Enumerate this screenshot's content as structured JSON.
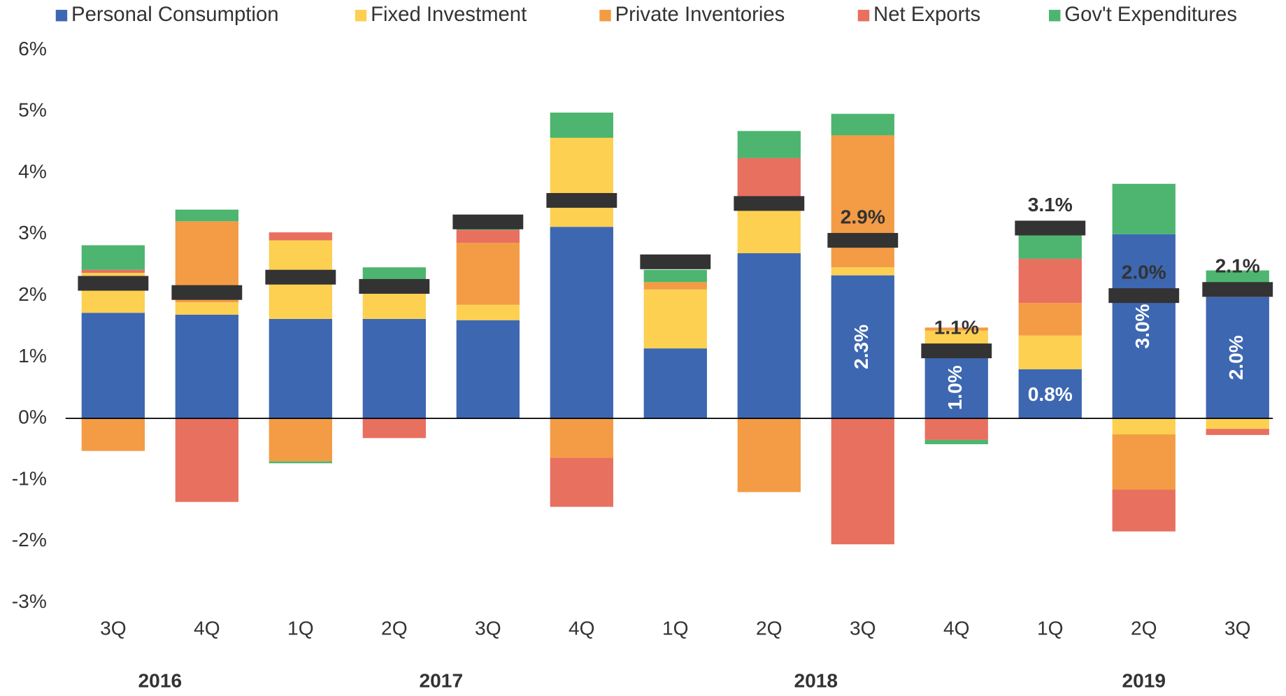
{
  "chart_data": {
    "type": "stacked-bar",
    "categories": [
      "3Q",
      "4Q",
      "1Q",
      "2Q",
      "3Q",
      "4Q",
      "1Q",
      "2Q",
      "3Q",
      "4Q",
      "1Q",
      "2Q",
      "3Q"
    ],
    "years": [
      "2016",
      "2017",
      "2018",
      "2019"
    ],
    "series": [
      {
        "name": "Personal Consumption",
        "color": "#3d67b1",
        "values": [
          1.72,
          1.69,
          1.62,
          1.62,
          1.6,
          3.12,
          1.14,
          2.69,
          2.33,
          1.0,
          0.8,
          3.0,
          1.98
        ],
        "value_labels": [
          null,
          null,
          null,
          null,
          null,
          null,
          null,
          null,
          "2.3%",
          "1.0%",
          "0.8%",
          "3.0%",
          "2.0%"
        ]
      },
      {
        "name": "Fixed Investment",
        "color": "#fdd052",
        "values": [
          0.65,
          0.2,
          1.28,
          0.64,
          0.25,
          1.45,
          0.96,
          0.7,
          0.13,
          0.43,
          0.55,
          -0.26,
          -0.17
        ]
      },
      {
        "name": "Private Inventories",
        "color": "#f39c45",
        "values": [
          -0.53,
          1.32,
          -0.7,
          0,
          1.01,
          -0.64,
          0.12,
          -1.2,
          2.15,
          0.05,
          0.53,
          -0.9,
          0.03
        ]
      },
      {
        "name": "Net Exports",
        "color": "#e8705f",
        "values": [
          0.05,
          -1.36,
          0.13,
          -0.32,
          0.21,
          -0.8,
          0,
          0.85,
          -2.05,
          -0.35,
          0.72,
          -0.68,
          -0.1
        ]
      },
      {
        "name": "Gov't Expenditures",
        "color": "#4db56f",
        "values": [
          0.4,
          0.19,
          -0.03,
          0.2,
          0.1,
          0.41,
          0.2,
          0.44,
          0.35,
          -0.07,
          0.5,
          0.82,
          0.4
        ]
      }
    ],
    "totals": {
      "color": "#333333",
      "values": [
        2.2,
        2.05,
        2.3,
        2.15,
        3.2,
        3.55,
        2.55,
        3.5,
        2.9,
        1.1,
        3.1,
        2.0,
        2.1
      ],
      "value_labels": [
        null,
        null,
        null,
        null,
        null,
        null,
        null,
        null,
        "2.9%",
        "1.1%",
        "3.1%",
        "2.0%",
        "2.1%"
      ]
    },
    "ylim": [
      -3,
      6
    ],
    "yticks": [
      {
        "value": -3,
        "label": "-3%"
      },
      {
        "value": -2,
        "label": "-2%"
      },
      {
        "value": -1,
        "label": "-1%"
      },
      {
        "value": 0,
        "label": "0%"
      },
      {
        "value": 1,
        "label": "1%"
      },
      {
        "value": 2,
        "label": "2%"
      },
      {
        "value": 3,
        "label": "3%"
      },
      {
        "value": 4,
        "label": "4%"
      },
      {
        "value": 5,
        "label": "5%"
      },
      {
        "value": 6,
        "label": "6%"
      }
    ],
    "grid": false,
    "legend": "top"
  }
}
